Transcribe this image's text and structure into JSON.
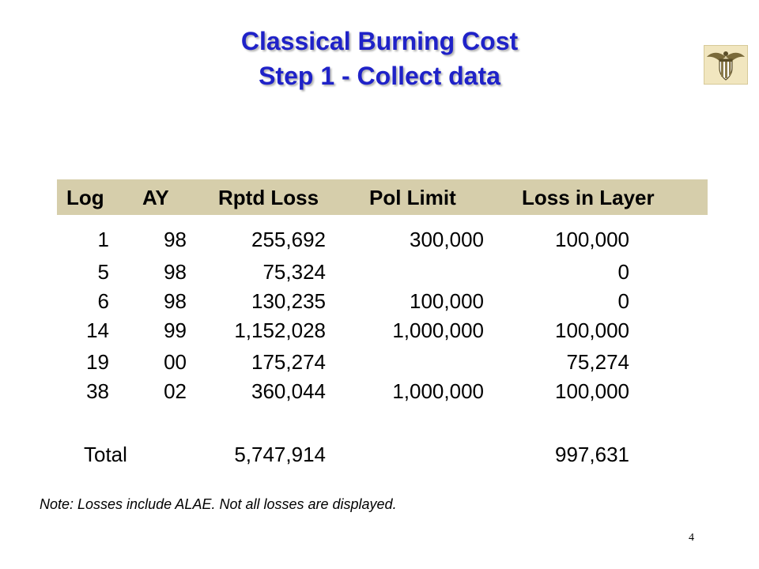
{
  "title": {
    "line1": "Classical Burning Cost",
    "line2": "Step 1 -  Collect data"
  },
  "table": {
    "headers": [
      "Log",
      "AY",
      "Rptd Loss",
      "Pol Limit",
      "Loss in Layer"
    ],
    "rows": [
      [
        "1",
        "98",
        "255,692",
        "300,000",
        "100,000"
      ],
      [
        "5",
        "98",
        "75,324",
        "",
        "0"
      ],
      [
        "6",
        "98",
        "130,235",
        "100,000",
        "0"
      ],
      [
        "14",
        "99",
        "1,152,028",
        "1,000,000",
        "100,000"
      ],
      [
        "19",
        "00",
        "175,274",
        "",
        "75,274"
      ],
      [
        "38",
        "02",
        "360,044",
        "1,000,000",
        "100,000"
      ]
    ],
    "total": {
      "label": "Total",
      "rptd_loss": "5,747,914",
      "loss_in_layer": "997,631"
    }
  },
  "note": "Note:  Losses include ALAE.  Not all losses are displayed.",
  "page_number": "4",
  "colors": {
    "title": "#1f22c8",
    "header_band": "#d6ceab",
    "emblem_bg": "#f1e6bf"
  },
  "logo": "eagle-shield-emblem"
}
